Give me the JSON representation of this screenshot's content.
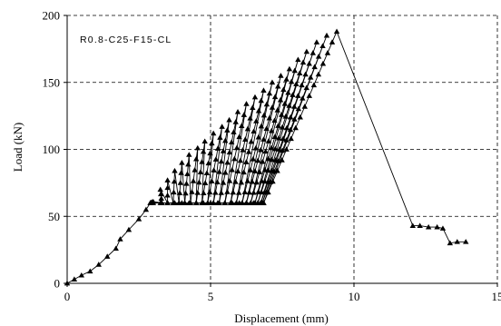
{
  "chart_data": {
    "type": "line",
    "title": "",
    "annotation": "R0.8-C25-F15-CL",
    "xlabel": "Displacement (mm)",
    "ylabel": "Load (kN)",
    "xlim": [
      0,
      15
    ],
    "ylim": [
      0,
      200
    ],
    "xticks": [
      0,
      5,
      10,
      15
    ],
    "yticks": [
      0,
      50,
      100,
      150,
      200
    ],
    "grid": "dashed",
    "line_color": "#000000",
    "marker": "triangle",
    "initial_loading": [
      [
        0,
        0
      ],
      [
        0.25,
        3
      ],
      [
        0.5,
        6
      ],
      [
        0.8,
        9
      ],
      [
        1.1,
        14
      ],
      [
        1.4,
        20
      ],
      [
        1.7,
        26
      ],
      [
        1.85,
        33
      ],
      [
        2.15,
        40
      ],
      [
        2.5,
        48
      ],
      [
        2.75,
        55
      ],
      [
        2.9,
        60
      ]
    ],
    "cycles": [
      {
        "x_peak": 3.0,
        "peak": 61,
        "x_unload": 3.3
      },
      {
        "x_peak": 3.25,
        "peak": 70,
        "x_unload": 3.5
      },
      {
        "x_peak": 3.5,
        "peak": 77,
        "x_unload": 3.7
      },
      {
        "x_peak": 3.75,
        "peak": 84,
        "x_unload": 3.9
      },
      {
        "x_peak": 4.0,
        "peak": 90,
        "x_unload": 4.1
      },
      {
        "x_peak": 4.25,
        "peak": 96,
        "x_unload": 4.3
      },
      {
        "x_peak": 4.55,
        "peak": 101,
        "x_unload": 4.5
      },
      {
        "x_peak": 4.8,
        "peak": 106,
        "x_unload": 4.7
      },
      {
        "x_peak": 5.1,
        "peak": 112,
        "x_unload": 4.9
      },
      {
        "x_peak": 5.4,
        "peak": 117,
        "x_unload": 5.1
      },
      {
        "x_peak": 5.65,
        "peak": 122,
        "x_unload": 5.3
      },
      {
        "x_peak": 5.95,
        "peak": 128,
        "x_unload": 5.5
      },
      {
        "x_peak": 6.25,
        "peak": 134,
        "x_unload": 5.7
      },
      {
        "x_peak": 6.55,
        "peak": 139,
        "x_unload": 5.9
      },
      {
        "x_peak": 6.85,
        "peak": 144,
        "x_unload": 6.1
      },
      {
        "x_peak": 7.15,
        "peak": 150,
        "x_unload": 6.25
      },
      {
        "x_peak": 7.45,
        "peak": 155,
        "x_unload": 6.4
      },
      {
        "x_peak": 7.75,
        "peak": 160,
        "x_unload": 6.55
      },
      {
        "x_peak": 8.05,
        "peak": 167,
        "x_unload": 6.65
      },
      {
        "x_peak": 8.35,
        "peak": 173,
        "x_unload": 6.75
      },
      {
        "x_peak": 8.7,
        "peak": 180,
        "x_unload": 6.8
      },
      {
        "x_peak": 9.05,
        "peak": 185,
        "x_unload": 6.85
      }
    ],
    "unload_load": 60,
    "final_branch": [
      [
        6.85,
        60
      ],
      [
        9.4,
        188
      ],
      [
        12.05,
        43
      ],
      [
        12.3,
        43
      ],
      [
        12.6,
        42
      ],
      [
        12.9,
        42
      ],
      [
        13.1,
        41
      ],
      [
        13.35,
        30
      ],
      [
        13.6,
        31
      ],
      [
        13.9,
        31
      ]
    ]
  }
}
